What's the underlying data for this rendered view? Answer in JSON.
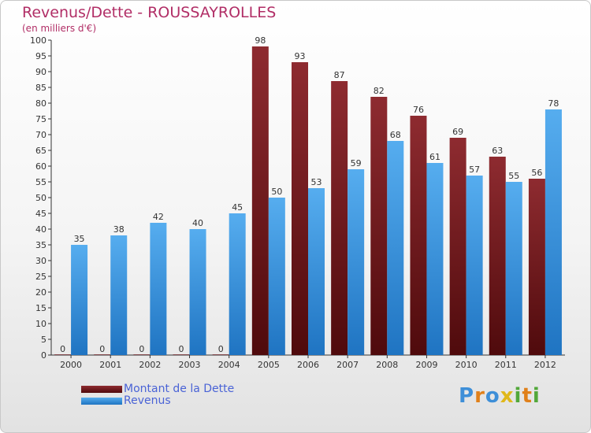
{
  "chart_data": {
    "type": "bar",
    "title": "Revenus/Dette - ROUSSAYROLLES",
    "subtitle": "(en milliers d'€)",
    "categories": [
      "2000",
      "2001",
      "2002",
      "2003",
      "2004",
      "2005",
      "2006",
      "2007",
      "2008",
      "2009",
      "2010",
      "2011",
      "2012"
    ],
    "series": [
      {
        "name": "Montant de la Dette",
        "color": "#7a1a1f",
        "values": [
          0,
          0,
          0,
          0,
          0,
          98,
          93,
          87,
          82,
          76,
          69,
          63,
          56
        ]
      },
      {
        "name": "Revenus",
        "color": "#3d9be0",
        "values": [
          35,
          38,
          42,
          40,
          45,
          50,
          53,
          59,
          68,
          61,
          57,
          55,
          78
        ]
      }
    ],
    "ylim": [
      0,
      100
    ],
    "ytick_step": 5,
    "grid": false,
    "xlabel": "",
    "ylabel": "",
    "legend_position": "bottom-left"
  },
  "brand": {
    "letters": [
      "P",
      "r",
      "o",
      "x",
      "i",
      "t",
      "i"
    ],
    "colors": [
      "#3e8fd8",
      "#e0801a",
      "#3e8fd8",
      "#e0b81a",
      "#52a83a",
      "#e0801a",
      "#52a83a"
    ]
  }
}
